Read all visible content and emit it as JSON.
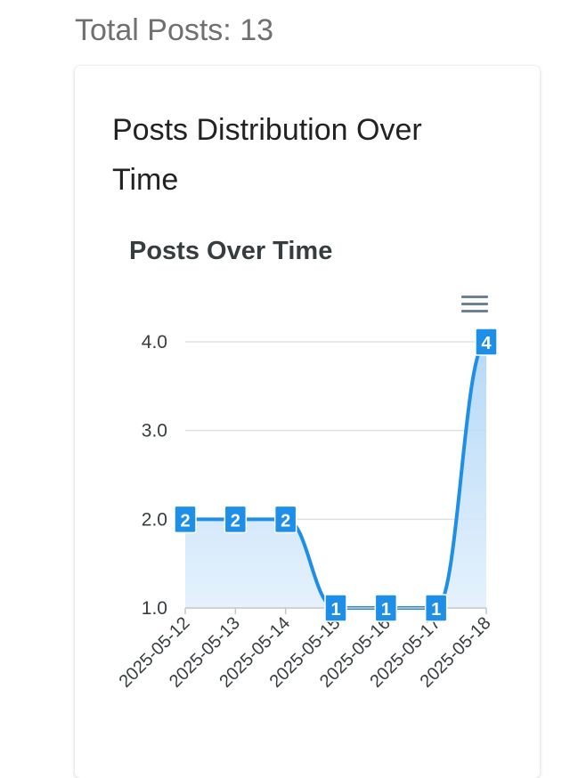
{
  "header": {
    "total_posts": "Total Posts: 13"
  },
  "card": {
    "title": "Posts Distribution Over Time"
  },
  "chart_data": {
    "type": "area",
    "title": "Posts Over Time",
    "xlabel": "",
    "ylabel": "",
    "x": [
      "2025-05-12",
      "2025-05-13",
      "2025-05-14",
      "2025-05-15",
      "2025-05-16",
      "2025-05-17",
      "2025-05-18"
    ],
    "series": [
      {
        "values": [
          2,
          2,
          2,
          1,
          1,
          1,
          4
        ]
      }
    ],
    "ylim": [
      1,
      4
    ],
    "yticks": [
      "1.0",
      "2.0",
      "3.0",
      "4.0"
    ],
    "grid": true,
    "data_labels": true,
    "colors": {
      "line": "#1e8fe8",
      "fill": "#cfe6fb",
      "grid": "#e0e0e0",
      "label_bg": "#1e8fe8"
    }
  },
  "toolbar": {
    "menu_icon": "hamburger-menu-icon"
  }
}
